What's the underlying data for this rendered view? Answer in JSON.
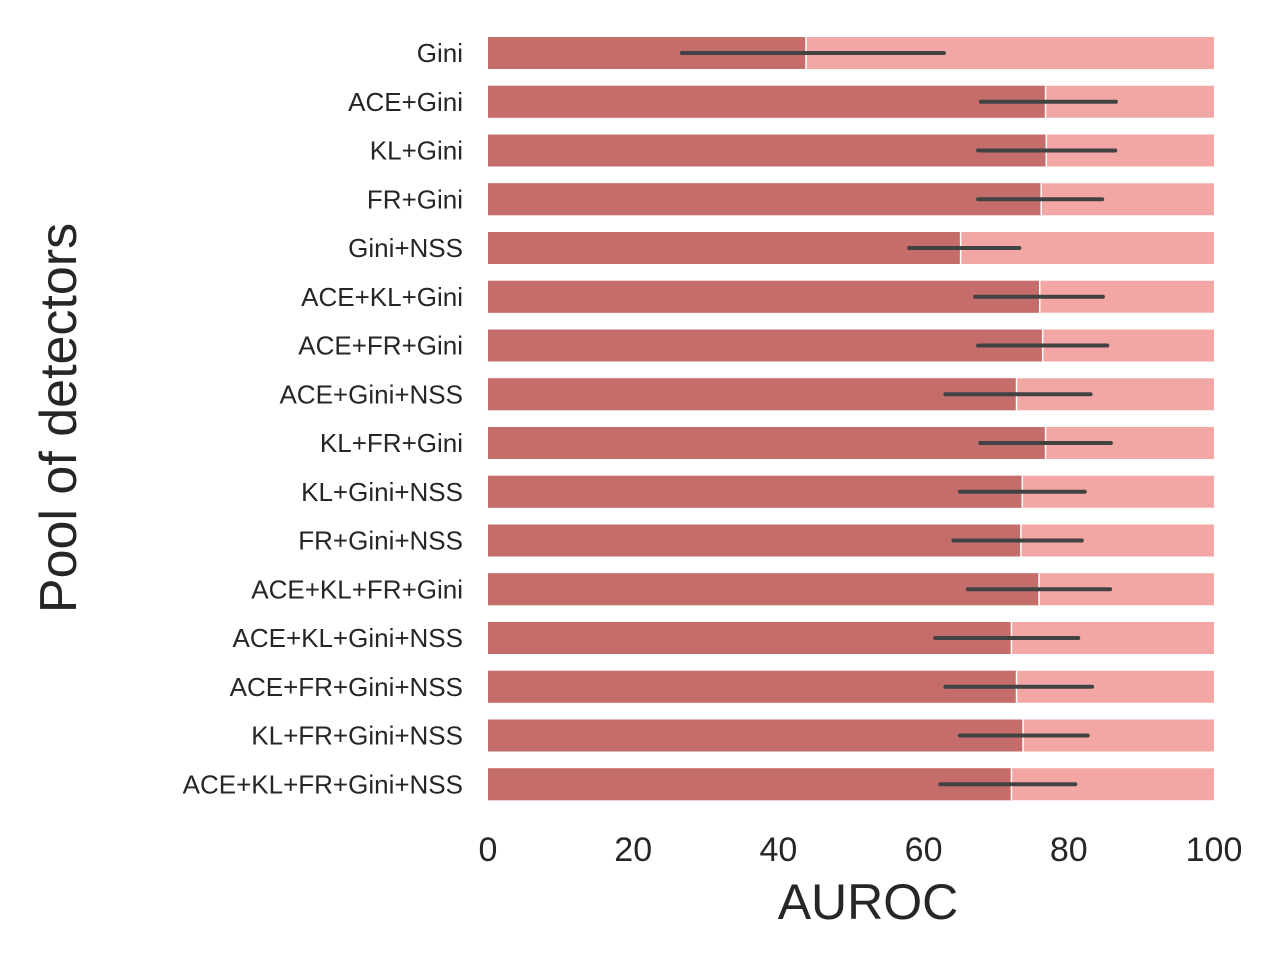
{
  "chart_data": {
    "type": "bar",
    "orientation": "horizontal",
    "title": "",
    "xlabel": "AUROC",
    "ylabel": "Pool of detectors",
    "xlim": [
      0,
      100
    ],
    "xticks": [
      "0",
      "20",
      "40",
      "60",
      "80",
      "100"
    ],
    "grid": false,
    "legend": "none",
    "categories": [
      "Gini",
      "ACE+Gini",
      "KL+Gini",
      "FR+Gini",
      "Gini+NSS",
      "ACE+KL+Gini",
      "ACE+FR+Gini",
      "ACE+Gini+NSS",
      "KL+FR+Gini",
      "KL+Gini+NSS",
      "FR+Gini+NSS",
      "ACE+KL+FR+Gini",
      "ACE+KL+Gini+NSS",
      "ACE+FR+Gini+NSS",
      "KL+FR+Gini+NSS",
      "ACE+KL+FR+Gini+NSS"
    ],
    "background_values": [
      100,
      100,
      100,
      100,
      100,
      100,
      100,
      100,
      100,
      100,
      100,
      100,
      100,
      100,
      100,
      100
    ],
    "values": [
      43.8,
      76.8,
      76.9,
      76.2,
      65.1,
      76.0,
      76.4,
      72.8,
      76.8,
      73.6,
      73.4,
      75.9,
      72.1,
      72.8,
      73.7,
      72.1
    ],
    "error_low": [
      26.7,
      67.9,
      67.5,
      67.5,
      58.0,
      67.1,
      67.5,
      63.0,
      67.8,
      65.0,
      64.1,
      66.1,
      61.6,
      63.0,
      65.0,
      62.3
    ],
    "error_high": [
      62.8,
      86.5,
      86.4,
      84.6,
      73.2,
      84.7,
      85.3,
      83.0,
      85.8,
      82.2,
      81.8,
      85.7,
      81.3,
      83.2,
      82.6,
      80.9
    ],
    "colors": {
      "bar": "#c56d6b",
      "background_bar": "#f2a7a5",
      "error_bar": "#424242",
      "text": "#262626"
    }
  }
}
